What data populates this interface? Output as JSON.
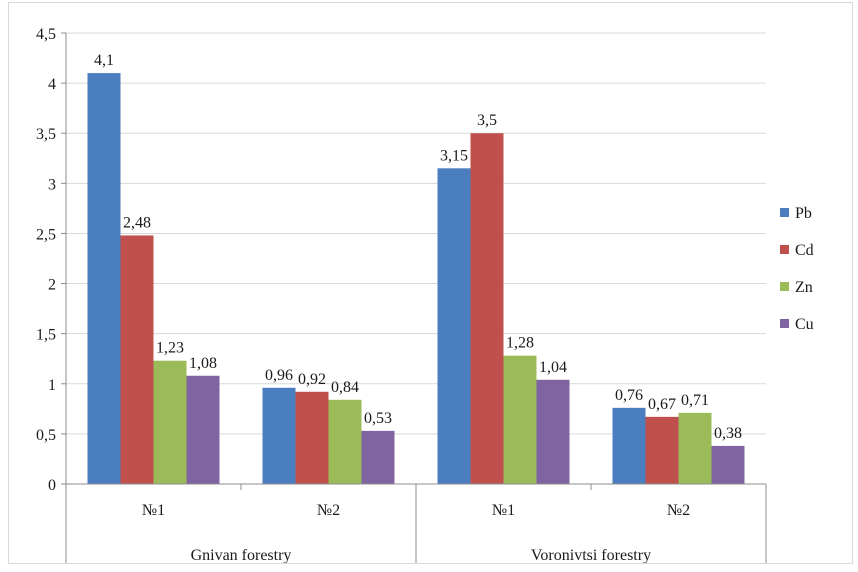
{
  "chart_data": {
    "type": "bar",
    "ylim": [
      0,
      4.5
    ],
    "yticks": [
      "0",
      "0,5",
      "1",
      "1,5",
      "2",
      "2,5",
      "3",
      "3,5",
      "4",
      "4,5"
    ],
    "ytick_values": [
      0,
      0.5,
      1,
      1.5,
      2,
      2.5,
      3,
      3.5,
      4,
      4.5
    ],
    "grid": true,
    "legend_position": "right",
    "categories": [
      "№1",
      "№2",
      "№1",
      "№2"
    ],
    "groups": [
      {
        "label": "Gnivan forestry",
        "categories": [
          "№1",
          "№2"
        ]
      },
      {
        "label": "Voronivtsi forestry",
        "categories": [
          "№1",
          "№2"
        ]
      }
    ],
    "series": [
      {
        "name": "Pb",
        "color": "#4a7ebf",
        "values": [
          4.1,
          0.96,
          3.15,
          0.76
        ],
        "labels": [
          "4,1",
          "0,96",
          "3,15",
          "0,76"
        ]
      },
      {
        "name": "Cd",
        "color": "#c0504d",
        "values": [
          2.48,
          0.92,
          3.5,
          0.67
        ],
        "labels": [
          "2,48",
          "0,92",
          "3,5",
          "0,67"
        ]
      },
      {
        "name": "Zn",
        "color": "#9bbb59",
        "values": [
          1.23,
          0.84,
          1.28,
          0.71
        ],
        "labels": [
          "1,23",
          "0,84",
          "1,28",
          "0,71"
        ]
      },
      {
        "name": "Cu",
        "color": "#8064a2",
        "values": [
          1.08,
          0.53,
          1.04,
          0.38
        ],
        "labels": [
          "1,08",
          "0,53",
          "1,04",
          "0,38"
        ]
      }
    ],
    "gridline_color": "#d9d9d9",
    "axis_color": "#8c8c8c"
  }
}
